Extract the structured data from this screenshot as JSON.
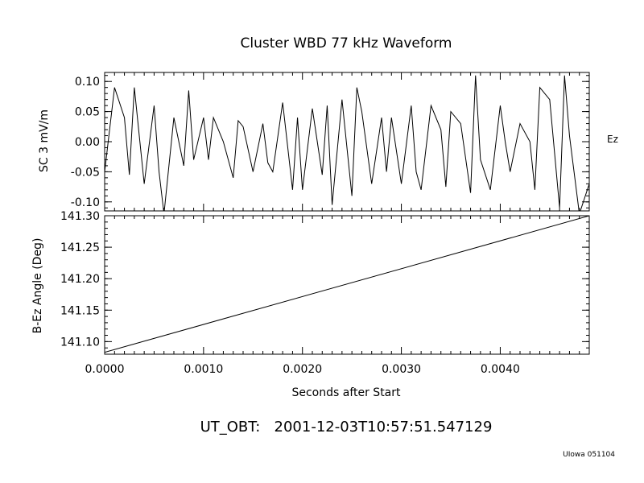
{
  "chart_data": [
    {
      "type": "line",
      "title": "Cluster WBD 77 kHz Waveform",
      "ylabel": "SC 3 mV/m",
      "series_label": "Ez",
      "xlim": [
        0,
        0.0049
      ],
      "ylim": [
        -0.115,
        0.115
      ],
      "yticks": [
        {
          "value": 0.1,
          "label": "0.10"
        },
        {
          "value": 0.05,
          "label": "0.05"
        },
        {
          "value": 0.0,
          "label": "0.00"
        },
        {
          "value": -0.05,
          "label": "-0.05"
        },
        {
          "value": -0.1,
          "label": "-0.10"
        }
      ],
      "series": [
        {
          "x": [
            0.0,
            0.0001,
            0.0002,
            0.00025,
            0.0003,
            0.0004,
            0.0005,
            0.00055,
            0.0006,
            0.0007,
            0.0008,
            0.00085,
            0.0009,
            0.001,
            0.00105,
            0.0011,
            0.0012,
            0.0013,
            0.00135,
            0.0014,
            0.0015,
            0.0016,
            0.00165,
            0.0017,
            0.0018,
            0.0019,
            0.00195,
            0.002,
            0.0021,
            0.0022,
            0.00225,
            0.0023,
            0.0024,
            0.0025,
            0.00255,
            0.0026,
            0.0027,
            0.0028,
            0.00285,
            0.0029,
            0.003,
            0.0031,
            0.00315,
            0.0032,
            0.0033,
            0.0034,
            0.00345,
            0.0035,
            0.0036,
            0.0037,
            0.00375,
            0.0038,
            0.0039,
            0.004,
            0.00405,
            0.0041,
            0.0042,
            0.0043,
            0.00435,
            0.0044,
            0.0045,
            0.0046,
            0.00465,
            0.0047,
            0.0048,
            0.0049
          ],
          "y": [
            -0.05,
            0.09,
            0.04,
            -0.055,
            0.09,
            -0.07,
            0.06,
            -0.05,
            -0.12,
            0.04,
            -0.04,
            0.085,
            -0.03,
            0.04,
            -0.03,
            0.04,
            0.0,
            -0.06,
            0.035,
            0.025,
            -0.05,
            0.03,
            -0.035,
            -0.05,
            0.065,
            -0.08,
            0.04,
            -0.08,
            0.055,
            -0.055,
            0.06,
            -0.105,
            0.07,
            -0.09,
            0.09,
            0.05,
            -0.07,
            0.04,
            -0.05,
            0.04,
            -0.07,
            0.06,
            -0.05,
            -0.08,
            0.06,
            0.02,
            -0.075,
            0.05,
            0.03,
            -0.085,
            0.11,
            -0.03,
            -0.08,
            0.06,
            0.0,
            -0.05,
            0.03,
            0.0,
            -0.08,
            0.09,
            0.07,
            -0.11,
            0.11,
            0.01,
            -0.12,
            -0.07
          ]
        }
      ]
    },
    {
      "type": "line",
      "ylabel": "B-Ez Angle (Deg)",
      "xlabel": "Seconds after Start",
      "xlim": [
        0,
        0.0049
      ],
      "ylim": [
        141.08,
        141.3
      ],
      "yticks": [
        {
          "value": 141.3,
          "label": "141.30"
        },
        {
          "value": 141.25,
          "label": "141.25"
        },
        {
          "value": 141.2,
          "label": "141.20"
        },
        {
          "value": 141.15,
          "label": "141.15"
        },
        {
          "value": 141.1,
          "label": "141.10"
        }
      ],
      "xticks": [
        {
          "value": 0.0,
          "label": "0.0000"
        },
        {
          "value": 0.001,
          "label": "0.0010"
        },
        {
          "value": 0.002,
          "label": "0.0020"
        },
        {
          "value": 0.003,
          "label": "0.0030"
        },
        {
          "value": 0.004,
          "label": "0.0040"
        }
      ],
      "series": [
        {
          "x": [
            0.0,
            0.0049
          ],
          "y": [
            141.083,
            141.3
          ]
        }
      ]
    }
  ],
  "footer": {
    "timestamp": "UT_OBT:   2001-12-03T10:57:51.547129",
    "credit": "UIowa 051104"
  }
}
